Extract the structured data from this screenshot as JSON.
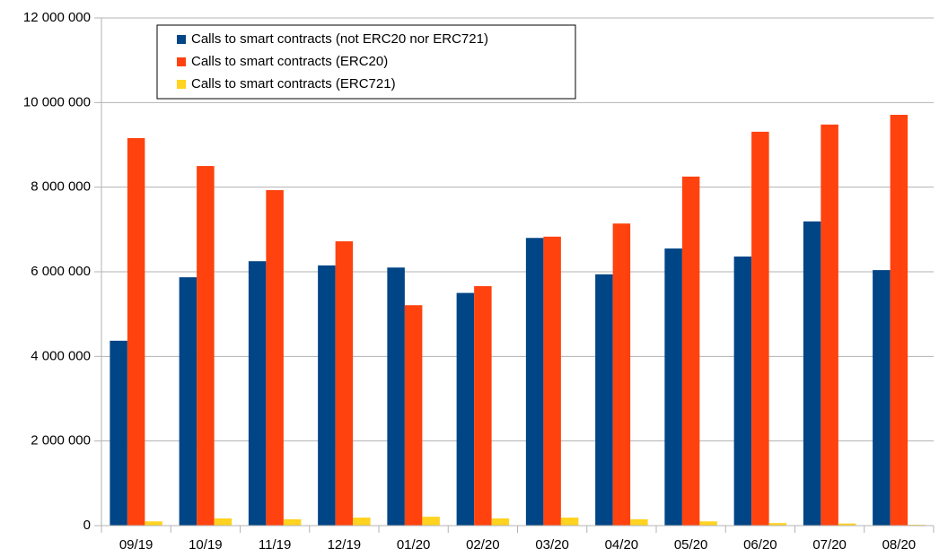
{
  "chart_data": {
    "type": "bar",
    "categories": [
      "09/19",
      "10/19",
      "11/19",
      "12/19",
      "01/20",
      "02/20",
      "03/20",
      "04/20",
      "05/20",
      "06/20",
      "07/20",
      "08/20"
    ],
    "series": [
      {
        "name": "Calls to smart contracts (not ERC20 nor ERC721)",
        "color": "#004586",
        "values": [
          4370000,
          5870000,
          6250000,
          6150000,
          6100000,
          5500000,
          6800000,
          5940000,
          6550000,
          6360000,
          7190000,
          6040000
        ]
      },
      {
        "name": "Calls to smart contracts (ERC20)",
        "color": "#ff420e",
        "values": [
          9160000,
          8500000,
          7930000,
          6720000,
          5210000,
          5660000,
          6830000,
          7140000,
          8250000,
          9310000,
          9480000,
          9710000
        ]
      },
      {
        "name": "Calls to smart contracts (ERC721)",
        "color": "#ffd320",
        "values": [
          100000,
          170000,
          150000,
          190000,
          210000,
          170000,
          190000,
          150000,
          100000,
          60000,
          50000,
          20000
        ]
      }
    ],
    "ylim": [
      0,
      12000000
    ],
    "yticks": [
      0,
      {
        "value": 2000000,
        "label": "2 000 000"
      },
      {
        "value": 4000000,
        "label": "4 000 000"
      },
      {
        "value": 6000000,
        "label": "6 000 000"
      },
      {
        "value": 8000000,
        "label": "8 000 000"
      },
      {
        "value": 10000000,
        "label": "10 000 000"
      },
      {
        "value": 12000000,
        "label": "12 000 000"
      }
    ],
    "grid": true,
    "legend": "top-left"
  }
}
